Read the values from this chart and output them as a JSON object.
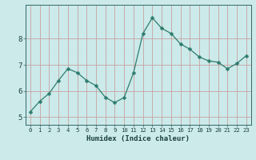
{
  "x": [
    0,
    1,
    2,
    3,
    4,
    5,
    6,
    7,
    8,
    9,
    10,
    11,
    12,
    13,
    14,
    15,
    16,
    17,
    18,
    19,
    20,
    21,
    22,
    23
  ],
  "y": [
    5.2,
    5.6,
    5.9,
    6.4,
    6.85,
    6.7,
    6.4,
    6.2,
    5.75,
    5.55,
    5.75,
    6.7,
    8.2,
    8.8,
    8.4,
    8.2,
    7.8,
    7.6,
    7.3,
    7.15,
    7.1,
    6.85,
    7.05,
    7.35
  ],
  "line_color": "#2e7d6e",
  "marker": "D",
  "marker_size": 2.5,
  "bg_color": "#cceaea",
  "grid_color": "#c8a0a0",
  "axis_color": "#336666",
  "xlabel": "Humidex (Indice chaleur)",
  "ylim": [
    4.7,
    9.3
  ],
  "xlim": [
    -0.5,
    23.5
  ],
  "yticks": [
    5,
    6,
    7,
    8
  ],
  "xticks": [
    0,
    1,
    2,
    3,
    4,
    5,
    6,
    7,
    8,
    9,
    10,
    11,
    12,
    13,
    14,
    15,
    16,
    17,
    18,
    19,
    20,
    21,
    22,
    23
  ],
  "font_color": "#1a4040"
}
